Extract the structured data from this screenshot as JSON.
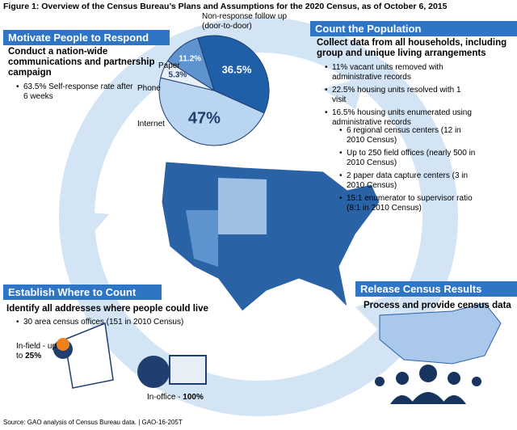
{
  "title": "Figure 1: Overview of the Census Bureau’s Plans and Assumptions for the 2020 Census, as of October 6, 2015",
  "motivate": {
    "heading": "Motivate People to Respond",
    "subheading": "Conduct a nation-wide communications and partnership campaign",
    "bullets": [
      "63.5% Self-response rate after 6 weeks"
    ]
  },
  "pie": {
    "categories": [
      "Non-response follow up (door-to-door)",
      "Internet",
      "Phone",
      "Paper"
    ],
    "values": [
      36.5,
      47,
      5.3,
      11.2
    ],
    "value_labels": [
      "36.5%",
      "47%",
      "5.3%",
      "11.2%"
    ],
    "colors": [
      "#1f5fa8",
      "#b9d5f2",
      "#e9eff7",
      "#5f93cf"
    ]
  },
  "count": {
    "heading": "Count the Population",
    "subheading": "Collect data from all households, including group and unique living arrangements",
    "bullets": [
      "11% vacant units removed with administrative records",
      "22.5% housing units resolved with 1 visit",
      "16.5% housing units enumerated using administrative records"
    ],
    "bullets2": [
      "6 regional census centers (12 in 2010 Census)",
      "Up to 250 field offices (nearly 500 in 2010 Census)",
      "2 paper data capture centers (3 in 2010 Census)",
      "15:1 enumerator to supervisor ratio (8:1 in 2010 Census)"
    ]
  },
  "establish": {
    "heading": "Establish Where to Count",
    "subheading": "Identify all addresses where people could live",
    "bullets": [
      "30 area census offices (151 in 2010 Census)"
    ],
    "infield_label": "In-field - up to",
    "infield_value": "25%",
    "inoffice_label": "In-office -",
    "inoffice_value": "100%"
  },
  "release": {
    "heading": "Release Census Results",
    "subheading": "Process and provide census data"
  },
  "source": "Source: GAO analysis of Census Bureau data. | GAO-16-205T"
}
